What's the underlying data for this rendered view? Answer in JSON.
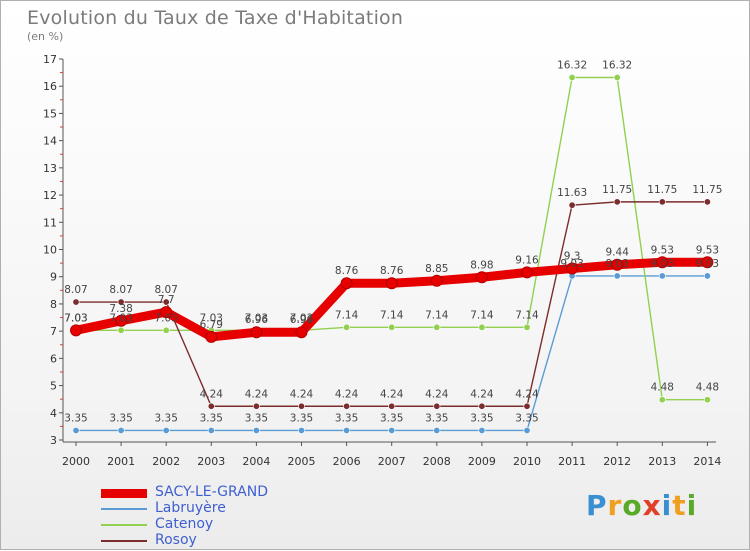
{
  "title": "Evolution du Taux de Taxe d'Habitation",
  "unit": "(en %)",
  "logo": {
    "text": "Proxiti",
    "colors": [
      "#3a8fd0",
      "#f0a020",
      "#5aaa2a",
      "#e0402a",
      "#3a8fd0",
      "#f0a020",
      "#5aaa2a"
    ]
  },
  "chart_data": {
    "type": "line",
    "title": "Evolution du Taux de Taxe d'Habitation",
    "ylabel": "(en %)",
    "xlabel": "",
    "ylim": [
      3,
      17
    ],
    "yticks": [
      3,
      4,
      5,
      6,
      7,
      8,
      9,
      10,
      11,
      12,
      13,
      14,
      15,
      16,
      17
    ],
    "grid": false,
    "legend_position": "bottom-left",
    "categories": [
      "2000",
      "2001",
      "2002",
      "2003",
      "2004",
      "2005",
      "2006",
      "2007",
      "2008",
      "2009",
      "2010",
      "2011",
      "2012",
      "2013",
      "2014"
    ],
    "series": [
      {
        "name": "SACY-LE-GRAND",
        "color": "#e60000",
        "values": [
          7.03,
          7.38,
          7.7,
          6.79,
          6.96,
          6.96,
          8.76,
          8.76,
          8.85,
          8.98,
          9.16,
          9.3,
          9.44,
          9.53,
          9.53
        ],
        "labels": [
          "7.03",
          "7.38",
          "7.7",
          "6.79",
          "6.96",
          "6.96",
          "8.76",
          "8.76",
          "8.85",
          "8.98",
          "9.16",
          "9.3",
          "9.44",
          "9.53",
          "9.53"
        ]
      },
      {
        "name": "Labruyère",
        "color": "#5b9bd5",
        "values": [
          3.35,
          3.35,
          3.35,
          3.35,
          3.35,
          3.35,
          3.35,
          3.35,
          3.35,
          3.35,
          3.35,
          9.03,
          9.03,
          9.03,
          9.03
        ],
        "labels": [
          "3.35",
          "3.35",
          "3.35",
          "3.35",
          "3.35",
          "3.35",
          "3.35",
          "3.35",
          "3.35",
          "3.35",
          "3.35",
          "9.03",
          "9.03",
          "9.03",
          "9.03"
        ]
      },
      {
        "name": "Catenoy",
        "color": "#92d050",
        "values": [
          7.03,
          7.03,
          7.03,
          7.03,
          7.03,
          7.03,
          7.14,
          7.14,
          7.14,
          7.14,
          7.14,
          16.32,
          16.32,
          4.48,
          4.48
        ],
        "labels": [
          "7.03",
          "7.03",
          "7.03",
          "7.03",
          "7.03",
          "7.03",
          "7.14",
          "7.14",
          "7.14",
          "7.14",
          "7.14",
          "16.32",
          "16.32",
          "4.48",
          "4.48"
        ]
      },
      {
        "name": "Rosoy",
        "color": "#7b2c2c",
        "values": [
          8.07,
          8.07,
          8.07,
          4.24,
          4.24,
          4.24,
          4.24,
          4.24,
          4.24,
          4.24,
          4.24,
          11.63,
          11.75,
          11.75,
          11.75
        ],
        "labels": [
          "8.07",
          "8.07",
          "8.07",
          "4.24",
          "4.24",
          "4.24",
          "4.24",
          "4.24",
          "4.24",
          "4.24",
          "4.24",
          "11.63",
          "11.75",
          "11.75",
          "11.75"
        ]
      }
    ]
  }
}
